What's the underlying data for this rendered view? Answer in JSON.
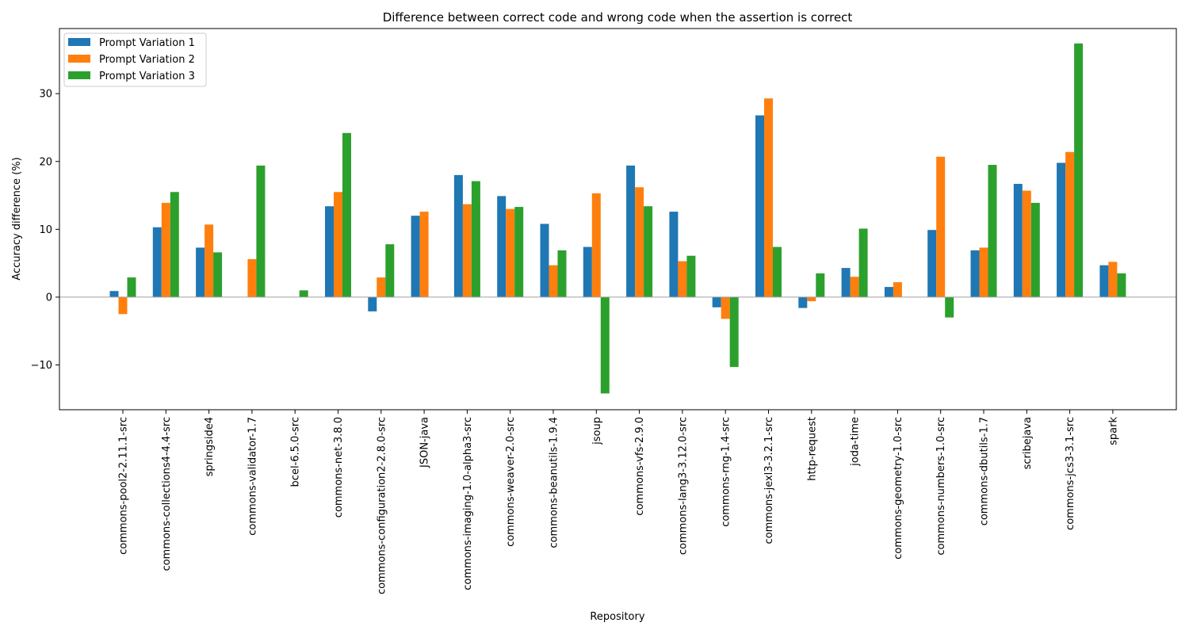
{
  "chart_data": {
    "type": "bar",
    "title": "Difference between correct code and wrong code when the assertion is correct",
    "xlabel": "Repository",
    "ylabel": "Accuracy difference (%)",
    "ylim": [
      -16.6,
      39.6
    ],
    "yticks": [
      -10,
      0,
      10,
      20,
      30
    ],
    "ytick_labels": [
      "−10",
      "0",
      "10",
      "20",
      "30"
    ],
    "grid": false,
    "legend_position": "top-left",
    "categories": [
      "commons-pool2-2.11.1-src",
      "commons-collections4-4.4-src",
      "springside4",
      "commons-validator-1.7",
      "bcel-6.5.0-src",
      "commons-net-3.8.0",
      "commons-configuration2-2.8.0-src",
      "JSON-java",
      "commons-imaging-1.0-alpha3-src",
      "commons-weaver-2.0-src",
      "commons-beanutils-1.9.4",
      "jsoup",
      "commons-vfs-2.9.0",
      "commons-lang3-3.12.0-src",
      "commons-rng-1.4-src",
      "commons-jexl3-3.2.1-src",
      "http-request",
      "joda-time",
      "commons-geometry-1.0-src",
      "commons-numbers-1.0-src",
      "commons-dbutils-1.7",
      "scribejava",
      "commons-jcs3-3.1-src",
      "spark"
    ],
    "series": [
      {
        "name": "Prompt Variation 1",
        "color": "#1f77b4",
        "values": [
          0.9,
          10.3,
          7.3,
          0.0,
          0.0,
          13.4,
          -2.1,
          12.0,
          18.0,
          14.9,
          10.8,
          7.4,
          19.4,
          12.6,
          -1.5,
          26.8,
          -1.6,
          4.3,
          1.5,
          9.9,
          6.9,
          16.7,
          19.8,
          4.7
        ]
      },
      {
        "name": "Prompt Variation 2",
        "color": "#ff7f0e",
        "values": [
          -2.5,
          13.9,
          10.7,
          5.6,
          0.0,
          15.5,
          2.9,
          12.6,
          13.7,
          13.0,
          4.7,
          15.3,
          16.2,
          5.3,
          -3.2,
          29.3,
          -0.6,
          3.0,
          2.2,
          20.7,
          7.3,
          15.7,
          21.4,
          5.2
        ]
      },
      {
        "name": "Prompt Variation 3",
        "color": "#2ca02c",
        "values": [
          2.9,
          15.5,
          6.6,
          19.4,
          1.0,
          24.2,
          7.8,
          0.0,
          17.1,
          13.3,
          6.9,
          -14.2,
          13.4,
          6.1,
          -10.3,
          7.4,
          3.5,
          10.1,
          0.0,
          -3.0,
          19.5,
          13.9,
          37.4,
          3.5
        ]
      }
    ]
  }
}
